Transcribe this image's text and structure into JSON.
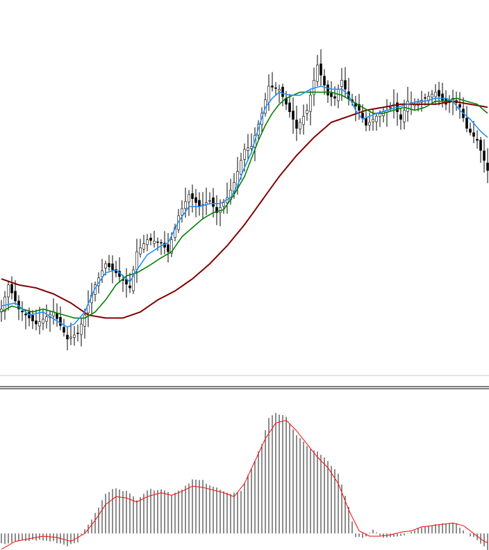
{
  "colors": {
    "background": "#ffffff",
    "candle": "#000000",
    "ma_fast": "#1e90ff",
    "ma_medium": "#008000",
    "ma_slow": "#800000",
    "histogram": "#000000",
    "signal": "#ff0000",
    "separator": "#000000",
    "baseline": "#c8c8c8"
  },
  "chart_data": [
    {
      "type": "candlestick",
      "title": "",
      "xlabel": "",
      "ylabel": "",
      "grid": false,
      "ylim": [
        0,
        100
      ],
      "n_bars": 141,
      "close_anchors": [
        [
          0,
          14
        ],
        [
          2,
          22
        ],
        [
          5,
          14
        ],
        [
          10,
          9
        ],
        [
          15,
          13
        ],
        [
          19,
          4
        ],
        [
          22,
          6
        ],
        [
          24,
          12
        ],
        [
          27,
          22
        ],
        [
          30,
          29
        ],
        [
          33,
          26
        ],
        [
          37,
          21
        ],
        [
          39,
          33
        ],
        [
          42,
          37
        ],
        [
          46,
          36
        ],
        [
          48,
          33
        ],
        [
          51,
          45
        ],
        [
          54,
          52
        ],
        [
          57,
          48
        ],
        [
          60,
          50
        ],
        [
          62,
          46
        ],
        [
          65,
          51
        ],
        [
          67,
          56
        ],
        [
          70,
          67
        ],
        [
          72,
          68
        ],
        [
          75,
          79
        ],
        [
          77,
          88
        ],
        [
          80,
          87
        ],
        [
          84,
          77
        ],
        [
          85,
          74
        ],
        [
          88,
          80
        ],
        [
          91,
          95
        ],
        [
          94,
          85
        ],
        [
          96,
          84
        ],
        [
          98,
          90
        ],
        [
          100,
          84
        ],
        [
          103,
          80
        ],
        [
          105,
          75
        ],
        [
          107,
          77
        ],
        [
          109,
          79
        ],
        [
          111,
          80
        ],
        [
          113,
          82
        ],
        [
          115,
          77
        ],
        [
          117,
          83
        ],
        [
          119,
          82
        ],
        [
          122,
          84
        ],
        [
          125,
          86
        ],
        [
          128,
          82
        ],
        [
          130,
          84
        ],
        [
          132,
          81
        ],
        [
          134,
          74
        ],
        [
          137,
          70
        ],
        [
          140,
          60
        ]
      ],
      "ma_fast_anchors": [
        [
          0,
          15
        ],
        [
          4,
          16
        ],
        [
          8,
          12
        ],
        [
          12,
          13
        ],
        [
          16,
          10
        ],
        [
          19,
          8
        ],
        [
          21,
          9
        ],
        [
          24,
          13
        ],
        [
          27,
          21
        ],
        [
          30,
          26
        ],
        [
          33,
          27
        ],
        [
          37,
          23
        ],
        [
          39,
          27
        ],
        [
          42,
          32
        ],
        [
          46,
          35
        ],
        [
          48,
          36
        ],
        [
          51,
          43
        ],
        [
          54,
          48
        ],
        [
          57,
          48
        ],
        [
          60,
          49
        ],
        [
          63,
          49
        ],
        [
          66,
          51
        ],
        [
          68,
          55
        ],
        [
          70,
          61
        ],
        [
          72,
          66
        ],
        [
          74,
          74
        ],
        [
          76,
          81
        ],
        [
          78,
          84
        ],
        [
          80,
          86
        ],
        [
          83,
          85
        ],
        [
          86,
          85
        ],
        [
          89,
          87
        ],
        [
          92,
          88
        ],
        [
          95,
          87
        ],
        [
          98,
          87
        ],
        [
          100,
          85
        ],
        [
          102,
          80
        ],
        [
          104,
          77
        ],
        [
          106,
          78
        ],
        [
          108,
          79
        ],
        [
          111,
          80
        ],
        [
          114,
          81
        ],
        [
          117,
          82
        ],
        [
          120,
          83
        ],
        [
          122,
          83
        ],
        [
          125,
          84
        ],
        [
          128,
          84
        ],
        [
          130,
          83
        ],
        [
          132,
          80
        ],
        [
          135,
          77
        ],
        [
          138,
          73
        ],
        [
          140,
          71
        ]
      ],
      "ma_medium_anchors": [
        [
          0,
          13
        ],
        [
          3,
          15
        ],
        [
          6,
          14
        ],
        [
          9,
          13
        ],
        [
          12,
          14
        ],
        [
          15,
          13
        ],
        [
          18,
          12
        ],
        [
          21,
          11
        ],
        [
          24,
          11
        ],
        [
          27,
          13
        ],
        [
          30,
          17
        ],
        [
          33,
          22
        ],
        [
          36,
          25
        ],
        [
          39,
          26
        ],
        [
          42,
          28
        ],
        [
          46,
          31
        ],
        [
          49,
          33
        ],
        [
          52,
          38
        ],
        [
          55,
          41
        ],
        [
          58,
          44
        ],
        [
          61,
          46
        ],
        [
          64,
          47
        ],
        [
          67,
          52
        ],
        [
          70,
          58
        ],
        [
          72,
          64
        ],
        [
          74,
          70
        ],
        [
          76,
          75
        ],
        [
          78,
          79
        ],
        [
          80,
          82
        ],
        [
          82,
          84
        ],
        [
          84,
          85
        ],
        [
          86,
          86
        ],
        [
          89,
          86
        ],
        [
          92,
          86
        ],
        [
          95,
          86
        ],
        [
          98,
          85
        ],
        [
          101,
          83
        ],
        [
          104,
          81
        ],
        [
          107,
          79
        ],
        [
          110,
          79
        ],
        [
          113,
          80
        ],
        [
          116,
          81
        ],
        [
          119,
          80
        ],
        [
          122,
          81
        ],
        [
          125,
          83
        ],
        [
          128,
          83
        ],
        [
          131,
          84
        ],
        [
          134,
          83
        ],
        [
          137,
          82
        ],
        [
          140,
          79
        ]
      ],
      "ma_slow_anchors": [
        [
          0,
          24
        ],
        [
          5,
          22
        ],
        [
          10,
          21
        ],
        [
          15,
          19
        ],
        [
          20,
          16
        ],
        [
          25,
          12
        ],
        [
          30,
          11
        ],
        [
          35,
          11
        ],
        [
          40,
          13
        ],
        [
          45,
          17
        ],
        [
          50,
          20
        ],
        [
          55,
          24
        ],
        [
          60,
          29
        ],
        [
          65,
          35
        ],
        [
          70,
          42
        ],
        [
          75,
          50
        ],
        [
          80,
          58
        ],
        [
          85,
          65
        ],
        [
          90,
          71
        ],
        [
          95,
          76
        ],
        [
          100,
          78
        ],
        [
          105,
          80
        ],
        [
          110,
          81
        ],
        [
          115,
          82
        ],
        [
          120,
          82
        ],
        [
          125,
          82
        ],
        [
          130,
          83
        ],
        [
          135,
          82
        ],
        [
          140,
          81
        ]
      ]
    },
    {
      "type": "histogram",
      "title": "",
      "xlabel": "",
      "ylabel": "",
      "grid": false,
      "ylim": [
        -12,
        100
      ],
      "zero_line": 0,
      "n_bars": 141,
      "histogram_anchors": [
        [
          0,
          -8
        ],
        [
          5,
          -6
        ],
        [
          10,
          -5
        ],
        [
          15,
          -6
        ],
        [
          19,
          -9
        ],
        [
          22,
          -6
        ],
        [
          24,
          3
        ],
        [
          27,
          15
        ],
        [
          30,
          30
        ],
        [
          33,
          35
        ],
        [
          36,
          32
        ],
        [
          39,
          26
        ],
        [
          42,
          33
        ],
        [
          46,
          34
        ],
        [
          49,
          30
        ],
        [
          52,
          34
        ],
        [
          55,
          41
        ],
        [
          58,
          40
        ],
        [
          60,
          36
        ],
        [
          63,
          34
        ],
        [
          66,
          30
        ],
        [
          69,
          32
        ],
        [
          72,
          50
        ],
        [
          75,
          68
        ],
        [
          77,
          88
        ],
        [
          79,
          92
        ],
        [
          82,
          88
        ],
        [
          85,
          75
        ],
        [
          88,
          66
        ],
        [
          91,
          62
        ],
        [
          94,
          55
        ],
        [
          97,
          45
        ],
        [
          100,
          20
        ],
        [
          102,
          -2
        ],
        [
          104,
          -4
        ],
        [
          107,
          3
        ],
        [
          110,
          -3
        ],
        [
          113,
          -2
        ],
        [
          116,
          -1
        ],
        [
          119,
          3
        ],
        [
          122,
          6
        ],
        [
          125,
          7
        ],
        [
          128,
          8
        ],
        [
          131,
          7
        ],
        [
          134,
          0
        ],
        [
          137,
          -5
        ],
        [
          140,
          -12
        ]
      ],
      "signal_anchors": [
        [
          0,
          -12
        ],
        [
          4,
          -6
        ],
        [
          8,
          -4
        ],
        [
          12,
          -2
        ],
        [
          16,
          -3
        ],
        [
          20,
          -6
        ],
        [
          24,
          0
        ],
        [
          27,
          10
        ],
        [
          30,
          22
        ],
        [
          33,
          28
        ],
        [
          36,
          27
        ],
        [
          39,
          24
        ],
        [
          42,
          28
        ],
        [
          46,
          31
        ],
        [
          49,
          29
        ],
        [
          52,
          32
        ],
        [
          55,
          36
        ],
        [
          58,
          35
        ],
        [
          61,
          33
        ],
        [
          64,
          31
        ],
        [
          67,
          28
        ],
        [
          70,
          38
        ],
        [
          73,
          55
        ],
        [
          76,
          72
        ],
        [
          79,
          84
        ],
        [
          82,
          86
        ],
        [
          85,
          78
        ],
        [
          88,
          68
        ],
        [
          91,
          58
        ],
        [
          94,
          50
        ],
        [
          97,
          38
        ],
        [
          100,
          18
        ],
        [
          103,
          2
        ],
        [
          106,
          -2
        ],
        [
          109,
          -2
        ],
        [
          112,
          -1
        ],
        [
          115,
          1
        ],
        [
          118,
          2
        ],
        [
          121,
          5
        ],
        [
          124,
          6
        ],
        [
          127,
          7
        ],
        [
          130,
          8
        ],
        [
          133,
          6
        ],
        [
          136,
          0
        ],
        [
          139,
          -6
        ],
        [
          140,
          -7
        ]
      ]
    }
  ]
}
